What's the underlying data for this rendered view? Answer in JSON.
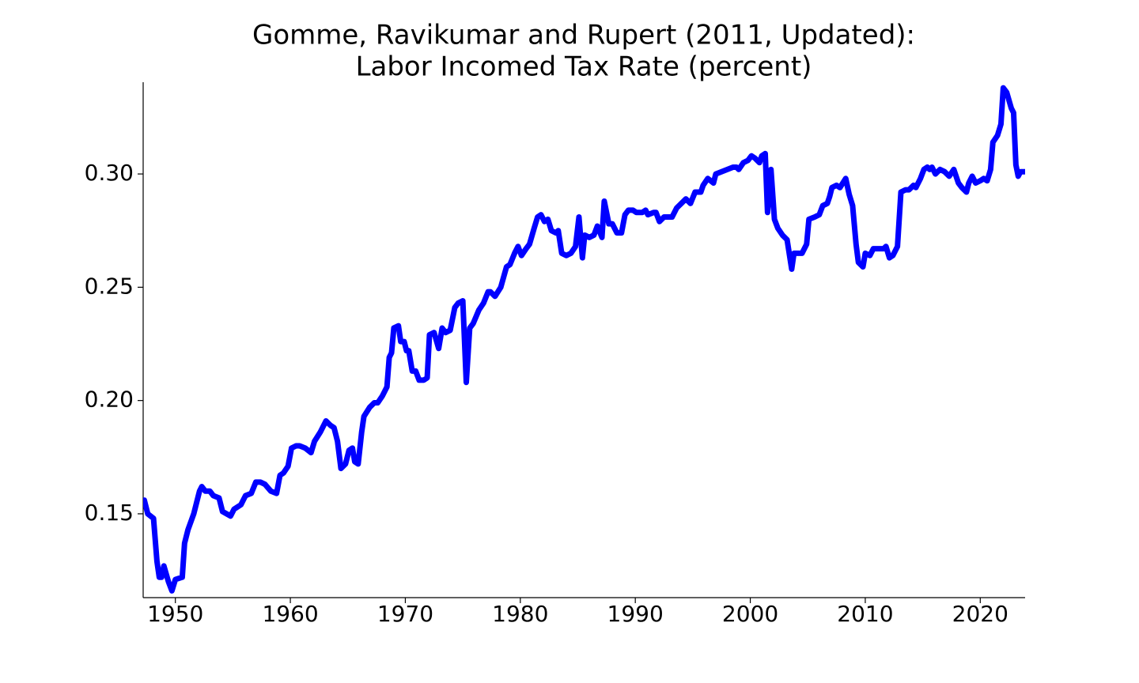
{
  "chart_data": {
    "type": "line",
    "title": [
      "Gomme, Ravikumar and Rupert (2011, Updated):",
      "Labor Incomed Tax Rate (percent)"
    ],
    "color": "#0000ff",
    "xlim": [
      1947.2,
      2023.9
    ],
    "ylim": [
      0.113,
      0.3405
    ],
    "xticks": [
      1950,
      1960,
      1970,
      1980,
      1990,
      2000,
      2010,
      2020
    ],
    "yticks": [
      0.15,
      {
        "value": 0.2,
        "label": "0.20"
      },
      0.25,
      {
        "value": 0.3,
        "label": "0.30"
      }
    ],
    "x": [
      1947.2,
      1947.3,
      1947.6,
      1948.1,
      1948.4,
      1948.6,
      1948.8,
      1949.0,
      1949.4,
      1949.7,
      1950.0,
      1950.6,
      1950.8,
      1951.1,
      1951.6,
      1952.1,
      1952.3,
      1952.6,
      1953.0,
      1953.3,
      1953.8,
      1954.1,
      1954.8,
      1955.1,
      1955.7,
      1956.1,
      1956.6,
      1957.0,
      1957.4,
      1957.8,
      1958.3,
      1958.8,
      1959.1,
      1959.4,
      1959.8,
      1960.1,
      1960.5,
      1960.8,
      1961.3,
      1961.8,
      1962.1,
      1962.6,
      1963.1,
      1963.5,
      1963.8,
      1964.1,
      1964.4,
      1964.8,
      1965.1,
      1965.4,
      1965.6,
      1965.9,
      1966.2,
      1966.4,
      1966.9,
      1967.3,
      1967.6,
      1968.0,
      1968.4,
      1968.6,
      1968.8,
      1969.0,
      1969.4,
      1969.6,
      1969.9,
      1970.1,
      1970.3,
      1970.6,
      1970.9,
      1971.2,
      1971.6,
      1971.9,
      1972.1,
      1972.5,
      1972.9,
      1973.2,
      1973.5,
      1973.9,
      1974.3,
      1974.6,
      1975.0,
      1975.3,
      1975.6,
      1975.9,
      1976.4,
      1976.8,
      1977.2,
      1977.4,
      1977.8,
      1978.3,
      1978.8,
      1979.1,
      1979.5,
      1979.8,
      1980.1,
      1980.5,
      1980.8,
      1981.2,
      1981.5,
      1981.8,
      1982.1,
      1982.4,
      1982.7,
      1983.1,
      1983.3,
      1983.6,
      1984.0,
      1984.4,
      1984.8,
      1985.1,
      1985.4,
      1985.6,
      1986.0,
      1986.4,
      1986.7,
      1987.1,
      1987.3,
      1987.7,
      1988.0,
      1988.4,
      1988.8,
      1989.1,
      1989.4,
      1989.8,
      1990.1,
      1990.6,
      1990.9,
      1991.1,
      1991.6,
      1991.8,
      1992.1,
      1992.5,
      1992.9,
      1993.2,
      1993.6,
      1994.0,
      1994.4,
      1994.8,
      1995.2,
      1995.7,
      1995.9,
      1996.3,
      1996.8,
      1997.0,
      1997.5,
      1998.0,
      1998.5,
      1998.8,
      1999.0,
      1999.4,
      1999.8,
      2000.1,
      2000.4,
      2000.8,
      2001.0,
      2001.3,
      2001.5,
      2001.8,
      2002.1,
      2002.4,
      2002.8,
      2003.2,
      2003.6,
      2003.8,
      2004.2,
      2004.5,
      2004.9,
      2005.1,
      2005.6,
      2006.0,
      2006.3,
      2006.7,
      2006.9,
      2007.1,
      2007.5,
      2007.8,
      2008.3,
      2008.6,
      2008.9,
      2009.2,
      2009.4,
      2009.8,
      2010.0,
      2010.4,
      2010.7,
      2011.2,
      2011.6,
      2011.8,
      2012.1,
      2012.4,
      2012.8,
      2013.1,
      2013.5,
      2013.8,
      2014.2,
      2014.4,
      2014.8,
      2015.1,
      2015.4,
      2015.6,
      2015.8,
      2016.1,
      2016.5,
      2016.9,
      2017.3,
      2017.7,
      2018.1,
      2018.4,
      2018.8,
      2019.0,
      2019.3,
      2019.6,
      2020.0,
      2020.3,
      2020.6,
      2020.9,
      2021.1,
      2021.5,
      2021.8,
      2022.0,
      2022.3,
      2022.7,
      2022.9,
      2023.1,
      2023.3,
      2023.5,
      2023.9
    ],
    "values": [
      0.156,
      0.156,
      0.15,
      0.148,
      0.129,
      0.122,
      0.122,
      0.127,
      0.12,
      0.116,
      0.121,
      0.122,
      0.137,
      0.143,
      0.15,
      0.16,
      0.162,
      0.16,
      0.16,
      0.158,
      0.157,
      0.151,
      0.149,
      0.152,
      0.154,
      0.158,
      0.159,
      0.164,
      0.164,
      0.163,
      0.16,
      0.159,
      0.167,
      0.168,
      0.171,
      0.179,
      0.18,
      0.18,
      0.179,
      0.177,
      0.182,
      0.186,
      0.191,
      0.189,
      0.188,
      0.182,
      0.17,
      0.172,
      0.178,
      0.179,
      0.173,
      0.172,
      0.186,
      0.193,
      0.197,
      0.199,
      0.199,
      0.202,
      0.206,
      0.219,
      0.221,
      0.232,
      0.233,
      0.226,
      0.226,
      0.222,
      0.222,
      0.213,
      0.213,
      0.209,
      0.209,
      0.21,
      0.229,
      0.23,
      0.223,
      0.232,
      0.23,
      0.231,
      0.241,
      0.243,
      0.244,
      0.208,
      0.232,
      0.234,
      0.24,
      0.243,
      0.248,
      0.248,
      0.246,
      0.25,
      0.259,
      0.26,
      0.265,
      0.268,
      0.264,
      0.267,
      0.269,
      0.276,
      0.281,
      0.282,
      0.279,
      0.28,
      0.275,
      0.274,
      0.275,
      0.265,
      0.264,
      0.265,
      0.268,
      0.281,
      0.263,
      0.273,
      0.272,
      0.273,
      0.277,
      0.272,
      0.288,
      0.278,
      0.278,
      0.274,
      0.274,
      0.282,
      0.284,
      0.284,
      0.283,
      0.283,
      0.284,
      0.282,
      0.283,
      0.283,
      0.279,
      0.281,
      0.281,
      0.281,
      0.285,
      0.287,
      0.289,
      0.287,
      0.292,
      0.292,
      0.295,
      0.298,
      0.296,
      0.3,
      0.301,
      0.302,
      0.303,
      0.303,
      0.302,
      0.305,
      0.306,
      0.308,
      0.307,
      0.305,
      0.308,
      0.309,
      0.283,
      0.302,
      0.28,
      0.276,
      0.273,
      0.271,
      0.258,
      0.265,
      0.265,
      0.265,
      0.269,
      0.28,
      0.281,
      0.282,
      0.286,
      0.287,
      0.29,
      0.294,
      0.295,
      0.294,
      0.298,
      0.291,
      0.286,
      0.269,
      0.261,
      0.259,
      0.265,
      0.264,
      0.267,
      0.267,
      0.267,
      0.268,
      0.263,
      0.264,
      0.268,
      0.292,
      0.293,
      0.293,
      0.295,
      0.294,
      0.298,
      0.302,
      0.303,
      0.302,
      0.303,
      0.3,
      0.302,
      0.301,
      0.299,
      0.302,
      0.296,
      0.294,
      0.292,
      0.296,
      0.299,
      0.296,
      0.297,
      0.298,
      0.297,
      0.302,
      0.314,
      0.317,
      0.322,
      0.338,
      0.336,
      0.329,
      0.327,
      0.304,
      0.299,
      0.301,
      0.301
    ]
  }
}
